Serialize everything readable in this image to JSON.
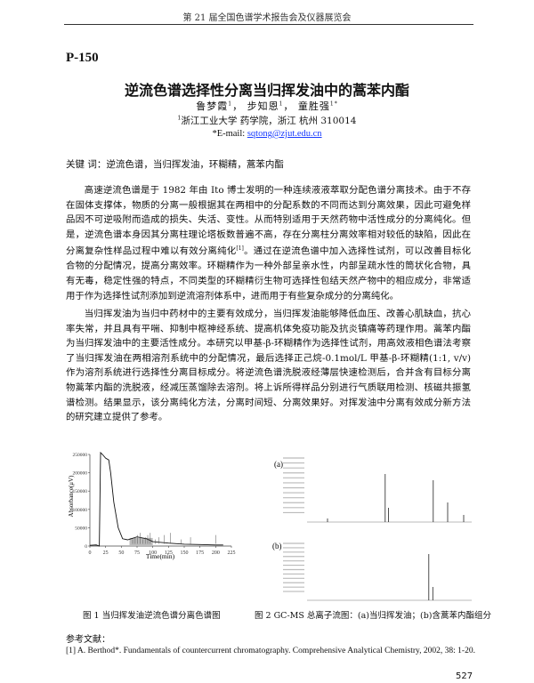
{
  "header": "第 21 届全国色谱学术报告会及仪器展览会",
  "paper_id": "P-150",
  "title": "逆流色谱选择性分离当归挥发油中的蒿苯内酯",
  "authors": [
    "鲁梦霞",
    "步知恩",
    "童胜强"
  ],
  "author_marks": [
    "1",
    "1",
    "1*"
  ],
  "affiliation_mark": "1",
  "affiliation": "浙江工业大学 药学院，浙江 杭州 310014",
  "email_label": "*E-mail: ",
  "email": "sqtong@zjut.edu.cn",
  "keywords": "关键 词：逆流色谱，当归挥发油，环糊精，蒿苯内酯",
  "para1_a": "高速逆流色谱是于 1982 年由 Ito 博士发明的一种连续液液萃取分配色谱分离技术。由于不存在固体支撑体，物质的分离一般根据其在两相中的分配系数的不同而达到分离效果，因此可避免样品因不可逆吸附而造成的损失、失活、变性。从而特别适用于天然药物中活性成分的分离纯化。但是，逆流色谱本身因其分离柱理论塔板数普遍不高，存在分离柱分离效率相对较低的缺陷，因此在分离复杂性样品过程中难以有效分离纯化",
  "para1_ref": "[1]",
  "para1_b": "。通过在逆流色谱中加入选择性试剂，可以改善目标化合物的分配情况，提高分离效率。环糊精作为一种外部呈亲水性，内部呈疏水性的筒状化合物，具有无毒，稳定性强的特点，不同类型的环糊精衍生物可选择性包结天然产物中的相应成分，非常适用于作为选择性试剂添加到逆流溶剂体系中，进而用于有些复杂成分的分离纯化。",
  "para2": "当归挥发油为当归中药材中的主要有效成分，当归挥发油能够降低血压、改善心肌缺血，抗心率失常，并且具有平喘、抑制中枢神经系统、提高机体免疫功能及抗炎镇痛等药理作用。蒿苯内酯为当归挥发油中的主要活性成分。本研究以甲基-β-环糊精作为选择性试剂，用高效液相色谱法考察了当归挥发油在两相溶剂系统中的分配情况，最后选择正己烷-0.1mol/L 甲基-β-环糊精(1:1, v/v)作为溶剂系统进行选择性分离目标成分。将逆流色谱洗脱液经薄层快速检测后，合并含有目标分离物蒿苯内酯的洗脱液，经减压蒸馏除去溶剂。将上诉所得样品分别进行气质联用检测、核磁共振氢谱检测。结果显示，该分离纯化方法，分离时间短、分离效果好。对挥发油中分离有效成分新方法的研究建立提供了参考。",
  "figure1_caption": "图 1 当归挥发油逆流色谱分离色谱图",
  "figure2_caption": "图 2 GC-MS 总离子流图：(a)当归挥发油；(b)含蒿苯内酯组分",
  "figure2_panel_labels": [
    "(a)",
    "(b)"
  ],
  "references_heading": "参考文献：",
  "references": [
    "[1] A. Berthod*. Fundamentals of countercurrent chromatography. Comprehensive Analytical Chemistry, 2002, 38: 1-20."
  ],
  "page_number": "527",
  "chart_data": {
    "type": "line",
    "title": "",
    "xlabel": "Time(min)",
    "ylabel": "Absorbance(μV)",
    "xlim": [
      0,
      225
    ],
    "ylim": [
      0,
      250000
    ],
    "x_ticks": [
      "0",
      "25",
      "50",
      "75",
      "100",
      "125",
      "150",
      "175",
      "200",
      "225"
    ],
    "y_ticks": [
      "0",
      "50000",
      "100000",
      "150000",
      "200000",
      "250000"
    ],
    "x": [
      0,
      10,
      15,
      17,
      20,
      25,
      30,
      33,
      38,
      45,
      52,
      60,
      75,
      90,
      100,
      125,
      150,
      175,
      200,
      212
    ],
    "y": [
      2000,
      3000,
      0,
      255000,
      250000,
      240000,
      235000,
      200000,
      120000,
      50000,
      20000,
      17000,
      25000,
      20000,
      12000,
      8000,
      5000,
      4000,
      3000,
      3000
    ],
    "shaded_range": [
      63,
      100
    ],
    "grid": false
  }
}
